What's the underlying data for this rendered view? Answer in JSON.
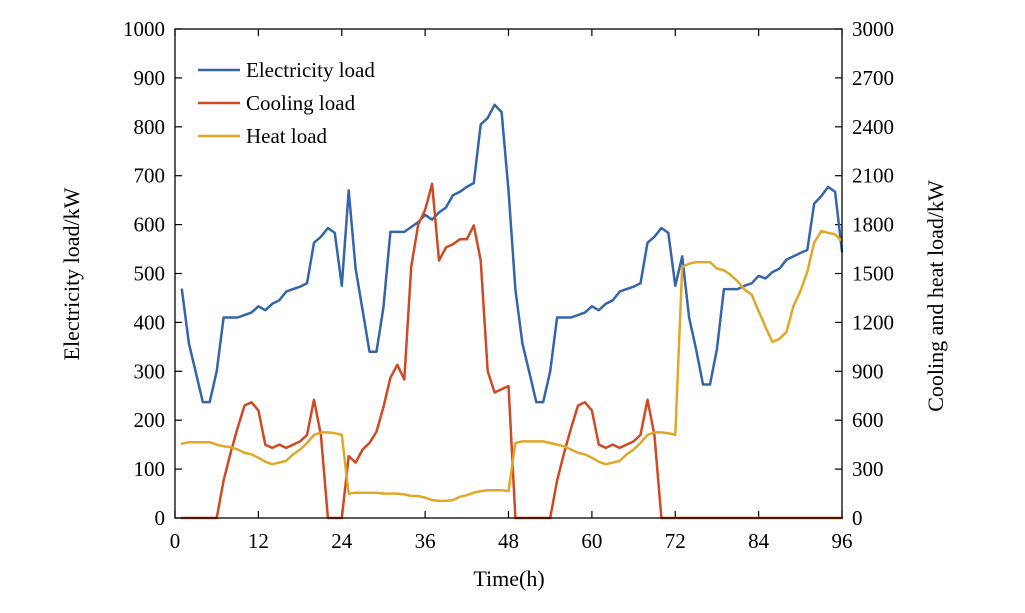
{
  "chart_data": {
    "type": "line",
    "xlabel": "Time(h)",
    "ylabel_left": "Electricity load/kW",
    "ylabel_right": "Cooling and heat load/kW",
    "xlim": [
      0,
      96
    ],
    "ylim_left": [
      0,
      1000
    ],
    "ylim_right": [
      0,
      3000
    ],
    "x_ticks": [
      0,
      12,
      24,
      36,
      48,
      60,
      72,
      84,
      96
    ],
    "y_ticks_left": [
      0,
      100,
      200,
      300,
      400,
      500,
      600,
      700,
      800,
      900,
      1000
    ],
    "y_ticks_right": [
      0,
      300,
      600,
      900,
      1200,
      1500,
      1800,
      2100,
      2400,
      2700,
      3000
    ],
    "legend_position": "top-left",
    "series": [
      {
        "name": "Electricity load",
        "axis": "left",
        "color": "#3465a8",
        "x": [
          1,
          2,
          3,
          4,
          5,
          6,
          7,
          8,
          9,
          10,
          11,
          12,
          13,
          14,
          15,
          16,
          17,
          18,
          19,
          20,
          21,
          22,
          23,
          24,
          25,
          26,
          27,
          28,
          29,
          30,
          31,
          32,
          33,
          34,
          35,
          36,
          37,
          38,
          39,
          40,
          41,
          42,
          43,
          44,
          45,
          46,
          47,
          48,
          49,
          50,
          51,
          52,
          53,
          54,
          55,
          56,
          57,
          58,
          59,
          60,
          61,
          62,
          63,
          64,
          65,
          66,
          67,
          68,
          69,
          70,
          71,
          72,
          73,
          74,
          75,
          76,
          77,
          78,
          79,
          80,
          81,
          82,
          83,
          84,
          85,
          86,
          87,
          88,
          89,
          90,
          91,
          92,
          93,
          94,
          95,
          96
        ],
        "values": [
          467,
          357,
          298,
          237,
          237,
          300,
          410,
          410,
          410,
          415,
          420,
          433,
          425,
          438,
          445,
          463,
          468,
          473,
          480,
          563,
          575,
          593,
          583,
          475,
          670,
          510,
          425,
          340,
          340,
          430,
          585,
          585,
          585,
          595,
          605,
          620,
          610,
          625,
          635,
          660,
          667,
          677,
          685,
          805,
          818,
          845,
          830,
          670,
          467,
          357,
          298,
          237,
          237,
          300,
          410,
          410,
          410,
          415,
          420,
          433,
          425,
          438,
          445,
          463,
          468,
          473,
          480,
          563,
          575,
          593,
          583,
          475,
          535,
          410,
          345,
          273,
          273,
          345,
          468,
          468,
          468,
          475,
          480,
          495,
          490,
          503,
          510,
          528,
          535,
          542,
          548,
          643,
          658,
          677,
          667,
          545
        ]
      },
      {
        "name": "Cooling load",
        "axis": "right",
        "color": "#cf4a24",
        "x": [
          1,
          2,
          3,
          4,
          5,
          6,
          7,
          8,
          9,
          10,
          11,
          12,
          13,
          14,
          15,
          16,
          17,
          18,
          19,
          20,
          21,
          22,
          23,
          24,
          25,
          26,
          27,
          28,
          29,
          30,
          31,
          32,
          33,
          34,
          35,
          36,
          37,
          38,
          39,
          40,
          41,
          42,
          43,
          44,
          45,
          46,
          47,
          48,
          49,
          50,
          51,
          52,
          53,
          54,
          55,
          56,
          57,
          58,
          59,
          60,
          61,
          62,
          63,
          64,
          65,
          66,
          67,
          68,
          69,
          70,
          71,
          72,
          73,
          74,
          75,
          76,
          77,
          78,
          79,
          80,
          81,
          82,
          83,
          84,
          85,
          86,
          87,
          88,
          89,
          90,
          91,
          92,
          93,
          94,
          95,
          96
        ],
        "values": [
          0,
          0,
          0,
          0,
          0,
          0,
          230,
          400,
          550,
          690,
          710,
          660,
          450,
          430,
          450,
          430,
          450,
          470,
          510,
          725,
          510,
          0,
          0,
          0,
          380,
          340,
          420,
          460,
          530,
          680,
          860,
          940,
          850,
          1540,
          1800,
          1890,
          2050,
          1580,
          1660,
          1680,
          1710,
          1710,
          1795,
          1580,
          900,
          770,
          790,
          810,
          0,
          0,
          0,
          0,
          0,
          0,
          230,
          400,
          550,
          690,
          710,
          660,
          450,
          430,
          450,
          430,
          450,
          470,
          510,
          725,
          510,
          0,
          0,
          0,
          0,
          0,
          0,
          0,
          0,
          0,
          0,
          0,
          0,
          0,
          0,
          0,
          0,
          0,
          0,
          0,
          0,
          0,
          0,
          0,
          0,
          0,
          0,
          0
        ]
      },
      {
        "name": "Heat load",
        "axis": "right",
        "color": "#e0a828",
        "x": [
          1,
          2,
          3,
          4,
          5,
          6,
          7,
          8,
          9,
          10,
          11,
          12,
          13,
          14,
          15,
          16,
          17,
          18,
          19,
          20,
          21,
          22,
          23,
          24,
          25,
          26,
          27,
          28,
          29,
          30,
          31,
          32,
          33,
          34,
          35,
          36,
          37,
          38,
          39,
          40,
          41,
          42,
          43,
          44,
          45,
          46,
          47,
          48,
          49,
          50,
          51,
          52,
          53,
          54,
          55,
          56,
          57,
          58,
          59,
          60,
          61,
          62,
          63,
          64,
          65,
          66,
          67,
          68,
          69,
          70,
          71,
          72,
          73,
          74,
          75,
          76,
          77,
          78,
          79,
          80,
          81,
          82,
          83,
          84,
          85,
          86,
          87,
          88,
          89,
          90,
          91,
          92,
          93,
          94,
          95,
          96
        ],
        "values": [
          455,
          465,
          465,
          465,
          465,
          450,
          440,
          435,
          420,
          400,
          390,
          370,
          345,
          330,
          340,
          350,
          390,
          420,
          460,
          510,
          525,
          525,
          520,
          510,
          150,
          155,
          155,
          155,
          155,
          150,
          150,
          150,
          145,
          135,
          135,
          125,
          110,
          105,
          105,
          110,
          130,
          140,
          155,
          165,
          170,
          170,
          170,
          165,
          460,
          470,
          470,
          470,
          470,
          460,
          450,
          440,
          420,
          400,
          390,
          370,
          345,
          330,
          340,
          350,
          390,
          420,
          460,
          510,
          525,
          525,
          520,
          510,
          1540,
          1560,
          1570,
          1570,
          1570,
          1530,
          1520,
          1490,
          1450,
          1400,
          1370,
          1270,
          1170,
          1080,
          1100,
          1140,
          1300,
          1390,
          1510,
          1690,
          1760,
          1750,
          1740,
          1700
        ]
      }
    ],
    "plot_frame_color": "#000000",
    "background": "#ffffff"
  }
}
